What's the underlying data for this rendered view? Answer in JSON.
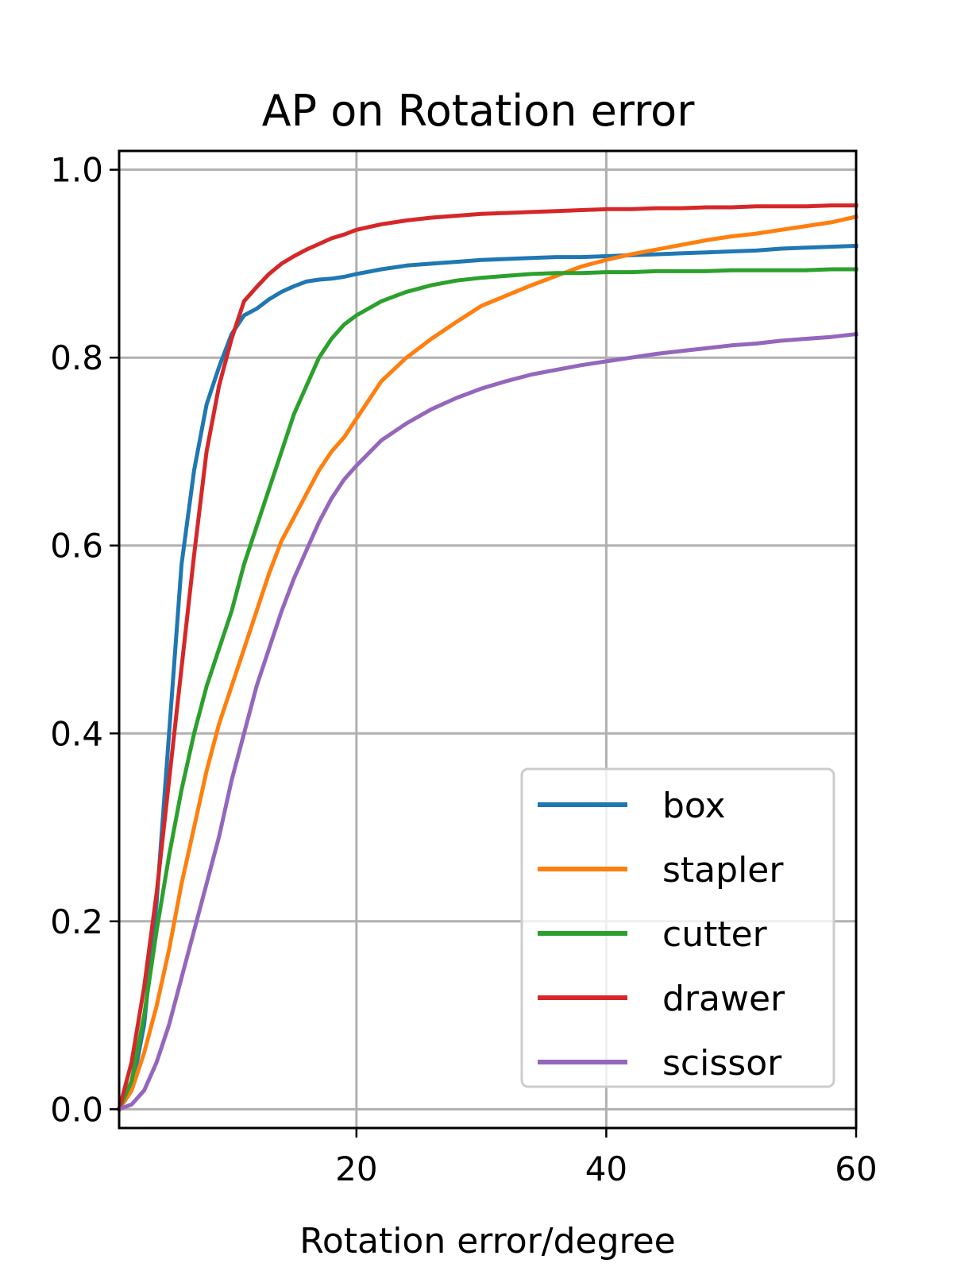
{
  "chart_data": {
    "type": "line",
    "title": "AP on Rotation error",
    "xlabel": "Rotation error/degree",
    "ylabel": "",
    "xlim": [
      1,
      60
    ],
    "ylim": [
      -0.02,
      1.02
    ],
    "xticks": [
      20,
      40,
      60
    ],
    "yticks": [
      0.0,
      0.2,
      0.4,
      0.6,
      0.8,
      1.0
    ],
    "xtick_labels": [
      "20",
      "40",
      "60"
    ],
    "ytick_labels": [
      "0.0",
      "0.2",
      "0.4",
      "0.6",
      "0.8",
      "1.0"
    ],
    "grid": true,
    "legend_position": "lower-right",
    "series": [
      {
        "name": "box",
        "color": "#1f77b4",
        "x": [
          1,
          2,
          3,
          4,
          5,
          6,
          7,
          8,
          9,
          10,
          11,
          12,
          13,
          14,
          15,
          16,
          17,
          18,
          19,
          20,
          22,
          24,
          26,
          28,
          30,
          32,
          34,
          36,
          38,
          40,
          42,
          44,
          46,
          48,
          50,
          52,
          54,
          56,
          58,
          60
        ],
        "y": [
          0.0,
          0.02,
          0.09,
          0.22,
          0.4,
          0.58,
          0.68,
          0.75,
          0.79,
          0.825,
          0.845,
          0.852,
          0.862,
          0.87,
          0.876,
          0.881,
          0.883,
          0.884,
          0.886,
          0.889,
          0.894,
          0.898,
          0.9,
          0.902,
          0.904,
          0.905,
          0.906,
          0.907,
          0.907,
          0.908,
          0.909,
          0.91,
          0.911,
          0.912,
          0.913,
          0.914,
          0.916,
          0.917,
          0.918,
          0.919
        ]
      },
      {
        "name": "stapler",
        "color": "#ff7f0e",
        "x": [
          1,
          2,
          3,
          4,
          5,
          6,
          7,
          8,
          9,
          10,
          11,
          12,
          13,
          14,
          15,
          16,
          17,
          18,
          19,
          20,
          22,
          24,
          26,
          28,
          30,
          32,
          34,
          36,
          38,
          40,
          42,
          44,
          46,
          48,
          50,
          52,
          54,
          56,
          58,
          60
        ],
        "y": [
          0.0,
          0.02,
          0.06,
          0.11,
          0.17,
          0.24,
          0.3,
          0.36,
          0.41,
          0.45,
          0.49,
          0.53,
          0.57,
          0.605,
          0.63,
          0.655,
          0.68,
          0.7,
          0.715,
          0.735,
          0.775,
          0.8,
          0.82,
          0.838,
          0.855,
          0.866,
          0.877,
          0.887,
          0.897,
          0.904,
          0.91,
          0.915,
          0.92,
          0.925,
          0.929,
          0.932,
          0.936,
          0.94,
          0.944,
          0.95
        ]
      },
      {
        "name": "cutter",
        "color": "#2ca02c",
        "x": [
          1,
          2,
          3,
          4,
          5,
          6,
          7,
          8,
          9,
          10,
          11,
          12,
          13,
          14,
          15,
          16,
          17,
          18,
          19,
          20,
          22,
          24,
          26,
          28,
          30,
          32,
          34,
          36,
          38,
          40,
          42,
          44,
          46,
          48,
          50,
          52,
          54,
          56,
          58,
          60
        ],
        "y": [
          0.0,
          0.03,
          0.1,
          0.19,
          0.27,
          0.34,
          0.4,
          0.45,
          0.49,
          0.53,
          0.58,
          0.62,
          0.66,
          0.7,
          0.74,
          0.77,
          0.8,
          0.82,
          0.835,
          0.845,
          0.86,
          0.87,
          0.877,
          0.882,
          0.885,
          0.887,
          0.889,
          0.89,
          0.89,
          0.891,
          0.891,
          0.892,
          0.892,
          0.892,
          0.893,
          0.893,
          0.893,
          0.893,
          0.894,
          0.894
        ]
      },
      {
        "name": "drawer",
        "color": "#d62728",
        "x": [
          1,
          2,
          3,
          4,
          5,
          6,
          7,
          8,
          9,
          10,
          11,
          12,
          13,
          14,
          15,
          16,
          17,
          18,
          19,
          20,
          22,
          24,
          26,
          28,
          30,
          32,
          34,
          36,
          38,
          40,
          42,
          44,
          46,
          48,
          50,
          52,
          54,
          56,
          58,
          60
        ],
        "y": [
          0.0,
          0.05,
          0.13,
          0.23,
          0.35,
          0.47,
          0.59,
          0.7,
          0.77,
          0.82,
          0.86,
          0.875,
          0.889,
          0.9,
          0.908,
          0.915,
          0.921,
          0.927,
          0.931,
          0.936,
          0.942,
          0.946,
          0.949,
          0.951,
          0.953,
          0.954,
          0.955,
          0.956,
          0.957,
          0.958,
          0.958,
          0.959,
          0.959,
          0.96,
          0.96,
          0.961,
          0.961,
          0.961,
          0.962,
          0.962
        ]
      },
      {
        "name": "scissor",
        "color": "#9467bd",
        "x": [
          1,
          2,
          3,
          4,
          5,
          6,
          7,
          8,
          9,
          10,
          11,
          12,
          13,
          14,
          15,
          16,
          17,
          18,
          19,
          20,
          22,
          24,
          26,
          28,
          30,
          32,
          34,
          36,
          38,
          40,
          42,
          44,
          46,
          48,
          50,
          52,
          54,
          56,
          58,
          60
        ],
        "y": [
          0.0,
          0.005,
          0.02,
          0.05,
          0.09,
          0.14,
          0.19,
          0.24,
          0.29,
          0.35,
          0.4,
          0.45,
          0.49,
          0.53,
          0.565,
          0.595,
          0.625,
          0.65,
          0.67,
          0.685,
          0.712,
          0.73,
          0.745,
          0.757,
          0.767,
          0.775,
          0.782,
          0.787,
          0.792,
          0.796,
          0.8,
          0.804,
          0.807,
          0.81,
          0.813,
          0.815,
          0.818,
          0.82,
          0.822,
          0.825
        ]
      }
    ]
  }
}
